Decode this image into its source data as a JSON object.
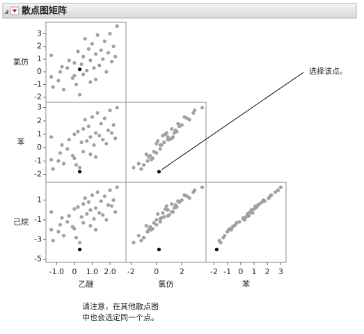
{
  "chart_data": {
    "type": "scatter-matrix",
    "title": "散点图矩阵",
    "annotation": "选择该点。",
    "note": [
      "请注意，在其他散点图",
      "中也会选定同一个点。"
    ],
    "color": "#a0a0a0",
    "selected_color": "#000000",
    "selected": 0,
    "x_variables": [
      0,
      1,
      2
    ],
    "y_variables": [
      1,
      2,
      3
    ],
    "variables": [
      {
        "name": "乙醚",
        "lim": [
          -1.6,
          2.9
        ],
        "xticks": [
          {
            "value": -1,
            "label": "-1.0"
          },
          0,
          {
            "value": 1,
            "label": "1.0"
          },
          {
            "value": 2,
            "label": "2.0"
          }
        ],
        "values": [
          0.3,
          -1.3,
          -1.3,
          -1.2,
          -0.9,
          -0.7,
          -0.6,
          -0.4,
          -0.3,
          -0.1,
          0.0,
          0.1,
          0.2,
          0.3,
          0.4,
          0.5,
          0.5,
          0.6,
          0.7,
          0.8,
          0.9,
          0.9,
          1.0,
          1.1,
          1.2,
          1.2,
          1.3,
          1.4,
          1.5,
          1.6,
          1.7,
          1.8,
          1.9,
          2.0,
          2.1,
          2.2,
          2.3,
          2.4,
          -0.8,
          0.0
        ]
      },
      {
        "name": "氯仿",
        "lim": [
          -2.4,
          3.9
        ],
        "xticks": [
          -2,
          0,
          2
        ],
        "yticks": [
          -2,
          -1,
          0,
          1,
          2,
          3
        ],
        "values": [
          0.2,
          -0.4,
          1.3,
          -1.2,
          -0.7,
          0.4,
          -1.4,
          0.3,
          0.9,
          -0.5,
          0.7,
          -1.0,
          1.6,
          -1.8,
          0.6,
          1.2,
          -0.2,
          2.6,
          0.1,
          1.8,
          -0.8,
          0.9,
          2.2,
          0.3,
          1.4,
          -0.6,
          2.9,
          0.5,
          1.7,
          1.0,
          2.4,
          0.0,
          1.5,
          3.0,
          0.8,
          2.0,
          1.2,
          3.6,
          0.0,
          -0.3
        ]
      },
      {
        "name": "苯",
        "lim": [
          -2.6,
          3.4
        ],
        "xticks": [
          -2,
          -1,
          0,
          1,
          2,
          3
        ],
        "yticks": [
          -2,
          -1,
          0,
          1,
          2,
          3
        ],
        "values": [
          -1.8,
          -0.9,
          0.8,
          -1.6,
          -1.0,
          0.2,
          -1.2,
          -0.1,
          0.6,
          -0.6,
          1.0,
          -1.3,
          1.2,
          -1.5,
          0.4,
          1.4,
          -0.3,
          2.1,
          0.5,
          1.6,
          -0.5,
          0.8,
          2.3,
          0.2,
          1.1,
          -0.7,
          2.6,
          0.9,
          1.8,
          0.6,
          2.2,
          0.3,
          1.3,
          2.8,
          1.1,
          1.7,
          0.7,
          3.0,
          -0.4,
          -0.8
        ]
      },
      {
        "name": "己烷",
        "lim": [
          -5.3,
          2.8
        ],
        "yticks": [
          -5,
          -3,
          -1,
          1
        ],
        "values": [
          -4.0,
          -2.0,
          -0.2,
          -3.1,
          -2.2,
          -0.8,
          -2.6,
          -1.2,
          -0.6,
          -1.7,
          0.1,
          -2.8,
          0.3,
          -3.3,
          -0.7,
          0.6,
          -1.3,
          1.2,
          -0.4,
          0.8,
          -1.6,
          0.0,
          1.5,
          -0.9,
          0.2,
          -2.0,
          1.8,
          -0.3,
          0.9,
          -0.5,
          1.4,
          -1.0,
          0.5,
          2.0,
          0.4,
          1.0,
          -0.2,
          2.3,
          -1.5,
          -1.9
        ]
      }
    ]
  }
}
